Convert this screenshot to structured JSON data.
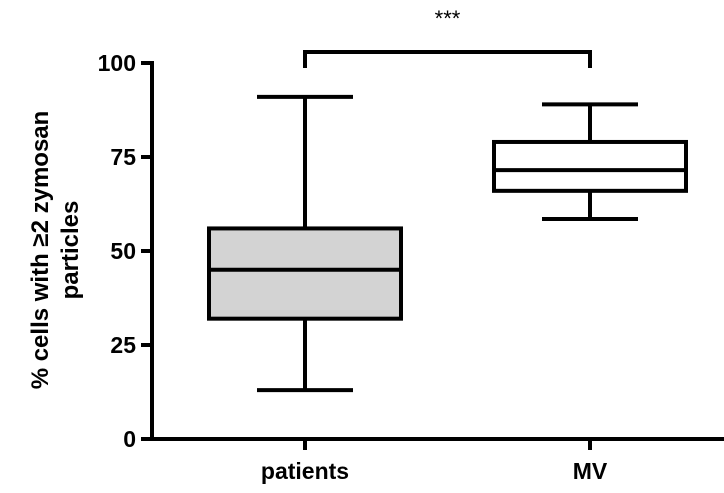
{
  "chart_data": {
    "type": "boxplot",
    "title": "",
    "xlabel": "",
    "ylabel": "% cells with ≥2 zymosan particles",
    "ylabel_lines": [
      "% cells with ≥2 zymosan",
      "particles"
    ],
    "ylim": [
      0,
      100
    ],
    "yticks": [
      0,
      25,
      50,
      75,
      100
    ],
    "grid": false,
    "legend": "none",
    "categories": [
      "patients",
      "MV"
    ],
    "series": [
      {
        "category": "patients",
        "min": 13,
        "q1": 32,
        "median": 45,
        "q3": 56,
        "max": 91,
        "fill": "#d3d3d3"
      },
      {
        "category": "MV",
        "min": 58.5,
        "q1": 66,
        "median": 71.5,
        "q3": 79,
        "max": 89,
        "fill": "#ffffff"
      }
    ],
    "annotations": [
      {
        "type": "significance-bracket",
        "from": "patients",
        "to": "MV",
        "at_y": 100,
        "label": "***"
      }
    ]
  }
}
